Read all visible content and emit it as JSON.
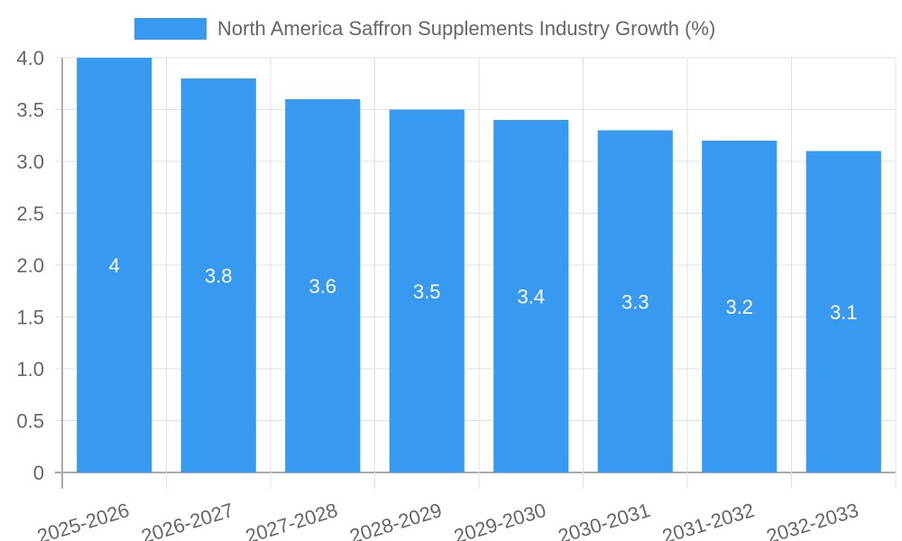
{
  "legend": {
    "label": "North America Saffron Supplements Industry Growth (%)",
    "color": "#379af0"
  },
  "chart_data": {
    "type": "bar",
    "title": "",
    "categories": [
      "2025-2026",
      "2026-2027",
      "2027-2028",
      "2028-2029",
      "2029-2030",
      "2030-2031",
      "2031-2032",
      "2032-2033"
    ],
    "series": [
      {
        "name": "North America Saffron Supplements Industry Growth (%)",
        "values": [
          4,
          3.8,
          3.6,
          3.5,
          3.4,
          3.3,
          3.2,
          3.1
        ],
        "color": "#379af0"
      }
    ],
    "data_labels": [
      "4",
      "3.8",
      "3.6",
      "3.5",
      "3.4",
      "3.3",
      "3.2",
      "3.1"
    ],
    "xlabel": "",
    "ylabel": "",
    "ylim": [
      0,
      4.0
    ],
    "yticks": [
      "0",
      "0.5",
      "1.0",
      "1.5",
      "2.0",
      "2.5",
      "3.0",
      "3.5",
      "4.0"
    ],
    "grid": true,
    "legend_position": "top"
  }
}
